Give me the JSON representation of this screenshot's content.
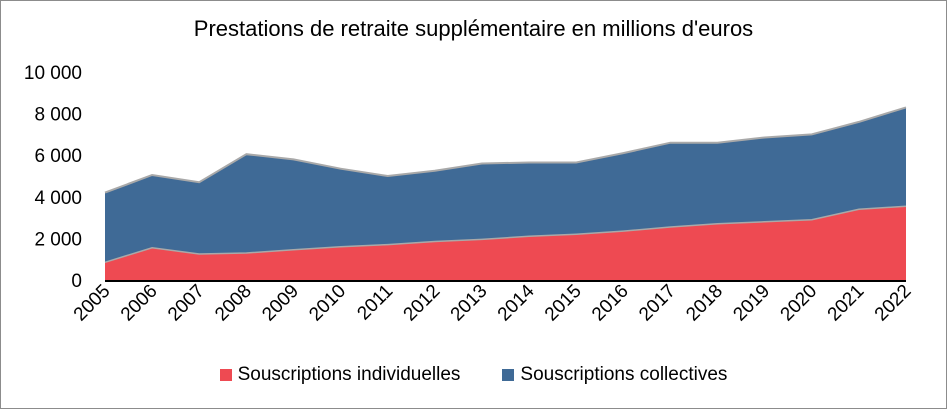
{
  "chart_data": {
    "type": "area",
    "stacked": true,
    "title": "Prestations de retraite supplémentaire en millions d'euros",
    "x": [
      "2005",
      "2006",
      "2007",
      "2008",
      "2009",
      "2010",
      "2011",
      "2012",
      "2013",
      "2014",
      "2015",
      "2016",
      "2017",
      "2018",
      "2019",
      "2020",
      "2021",
      "2022"
    ],
    "y_ticks": [
      "0",
      "2 000",
      "4 000",
      "6 000",
      "8 000",
      "10 000"
    ],
    "ylim": [
      0,
      10000
    ],
    "grid": false,
    "legend_position": "bottom",
    "series": [
      {
        "name": "Souscriptions individuelles",
        "color": "#ee4a52",
        "values": [
          850,
          1550,
          1250,
          1300,
          1450,
          1600,
          1700,
          1850,
          1950,
          2100,
          2200,
          2350,
          2550,
          2700,
          2800,
          2900,
          3400,
          3550
        ]
      },
      {
        "name": "Souscriptions collectives",
        "color": "#3f6a96",
        "values": [
          3350,
          3500,
          3450,
          4750,
          4350,
          3750,
          3300,
          3400,
          3650,
          3550,
          3450,
          3750,
          4050,
          3900,
          4050,
          4100,
          4200,
          4750
        ]
      }
    ]
  }
}
